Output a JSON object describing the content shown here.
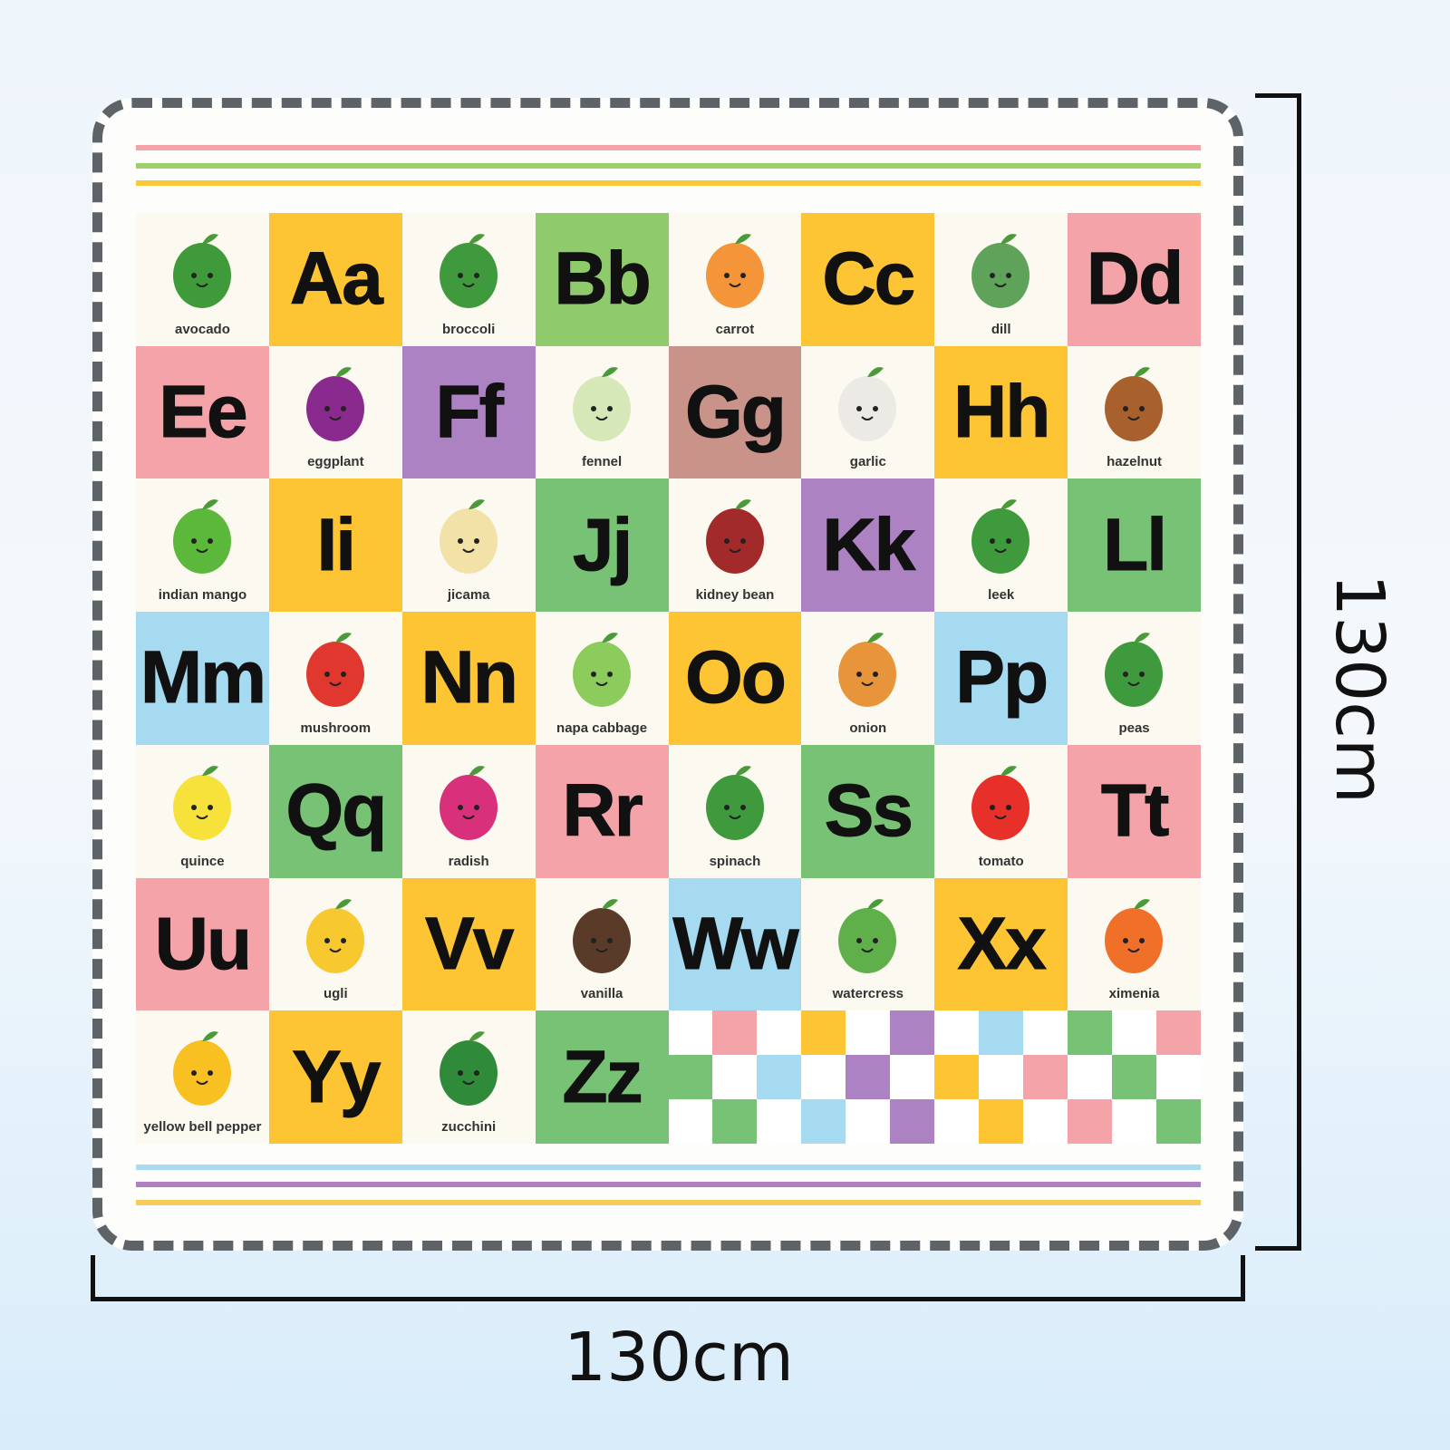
{
  "dimensions": {
    "width": "130cm",
    "height": "130cm"
  },
  "stripes": {
    "top": [
      "#f4a3a8",
      "#9dd06a",
      "#fcc83a"
    ],
    "bottom": [
      "#a8dcf0",
      "#b080c2",
      "#f8cc5a"
    ]
  },
  "cells": [
    {
      "label": "avocado",
      "color": "#3f9a3a"
    },
    {
      "letter": "Aa",
      "color": "#fdc433"
    },
    {
      "label": "broccoli",
      "color": "#3e9a3c"
    },
    {
      "letter": "Bb",
      "color": "#8fcb6b"
    },
    {
      "label": "carrot",
      "color": "#f5953a"
    },
    {
      "letter": "Cc",
      "color": "#fdc433"
    },
    {
      "label": "dill",
      "color": "#5fa35a"
    },
    {
      "letter": "Dd",
      "color": "#f4a3a8"
    },
    {
      "letter": "Ee",
      "color": "#f4a3a8"
    },
    {
      "label": "eggplant",
      "color": "#8a2a8e"
    },
    {
      "letter": "Ff",
      "color": "#ad82c3"
    },
    {
      "label": "fennel",
      "color": "#d7e8b8"
    },
    {
      "letter": "Gg",
      "color": "#c9938a"
    },
    {
      "label": "garlic",
      "color": "#eceae4"
    },
    {
      "letter": "Hh",
      "color": "#fdc433"
    },
    {
      "label": "hazelnut",
      "color": "#a8612c"
    },
    {
      "label": "indian mango",
      "color": "#5bb83a"
    },
    {
      "letter": "Ii",
      "color": "#fdc433"
    },
    {
      "label": "jicama",
      "color": "#f2e2a8"
    },
    {
      "letter": "Jj",
      "color": "#77c274"
    },
    {
      "label": "kidney bean",
      "color": "#a32a2a"
    },
    {
      "letter": "Kk",
      "color": "#ad82c3"
    },
    {
      "label": "leek",
      "color": "#3e9a3c"
    },
    {
      "letter": "Ll",
      "color": "#77c274"
    },
    {
      "letter": "Mm",
      "color": "#a6daf0"
    },
    {
      "label": "mushroom",
      "color": "#e0382e"
    },
    {
      "letter": "Nn",
      "color": "#fdc433"
    },
    {
      "label": "napa cabbage",
      "color": "#8ccc5c"
    },
    {
      "letter": "Oo",
      "color": "#fdc433"
    },
    {
      "label": "onion",
      "color": "#e8943a"
    },
    {
      "letter": "Pp",
      "color": "#a6daf0"
    },
    {
      "label": "peas",
      "color": "#3e9a3c"
    },
    {
      "label": "quince",
      "color": "#f6e23a"
    },
    {
      "letter": "Qq",
      "color": "#77c274"
    },
    {
      "label": "radish",
      "color": "#d8307a"
    },
    {
      "letter": "Rr",
      "color": "#f4a3a8"
    },
    {
      "label": "spinach",
      "color": "#3e9a3c"
    },
    {
      "letter": "Ss",
      "color": "#77c274"
    },
    {
      "label": "tomato",
      "color": "#e8302a"
    },
    {
      "letter": "Tt",
      "color": "#f4a3a8"
    },
    {
      "letter": "Uu",
      "color": "#f4a3a8"
    },
    {
      "label": "ugli",
      "color": "#f8c830"
    },
    {
      "letter": "Vv",
      "color": "#fdc433"
    },
    {
      "label": "vanilla",
      "color": "#5a3a28"
    },
    {
      "letter": "Ww",
      "color": "#a6daf0"
    },
    {
      "label": "watercress",
      "color": "#5fb04a"
    },
    {
      "letter": "Xx",
      "color": "#fdc433"
    },
    {
      "label": "ximenia",
      "color": "#f0702a"
    },
    {
      "label": "yellow bell pepper",
      "color": "#f8c020"
    },
    {
      "letter": "Yy",
      "color": "#fdc433"
    },
    {
      "label": "zucchini",
      "color": "#2f8a3a"
    },
    {
      "letter": "Zz",
      "color": "#77c274"
    }
  ],
  "checker": [
    [
      "",
      "#f4a3a8",
      "",
      "#fdc433",
      "",
      "#ad82c3",
      "",
      "#a6daf0",
      "",
      "#77c274",
      "",
      "#f4a3a8"
    ],
    [
      "#77c274",
      "",
      "#a6daf0",
      "",
      "#ad82c3",
      "",
      "#fdc433",
      "",
      "#f4a3a8",
      "",
      "#77c274",
      ""
    ],
    [
      "",
      "#77c274",
      "",
      "#a6daf0",
      "",
      "#ad82c3",
      "",
      "#fdc433",
      "",
      "#f4a3a8",
      "",
      "#77c274"
    ]
  ]
}
